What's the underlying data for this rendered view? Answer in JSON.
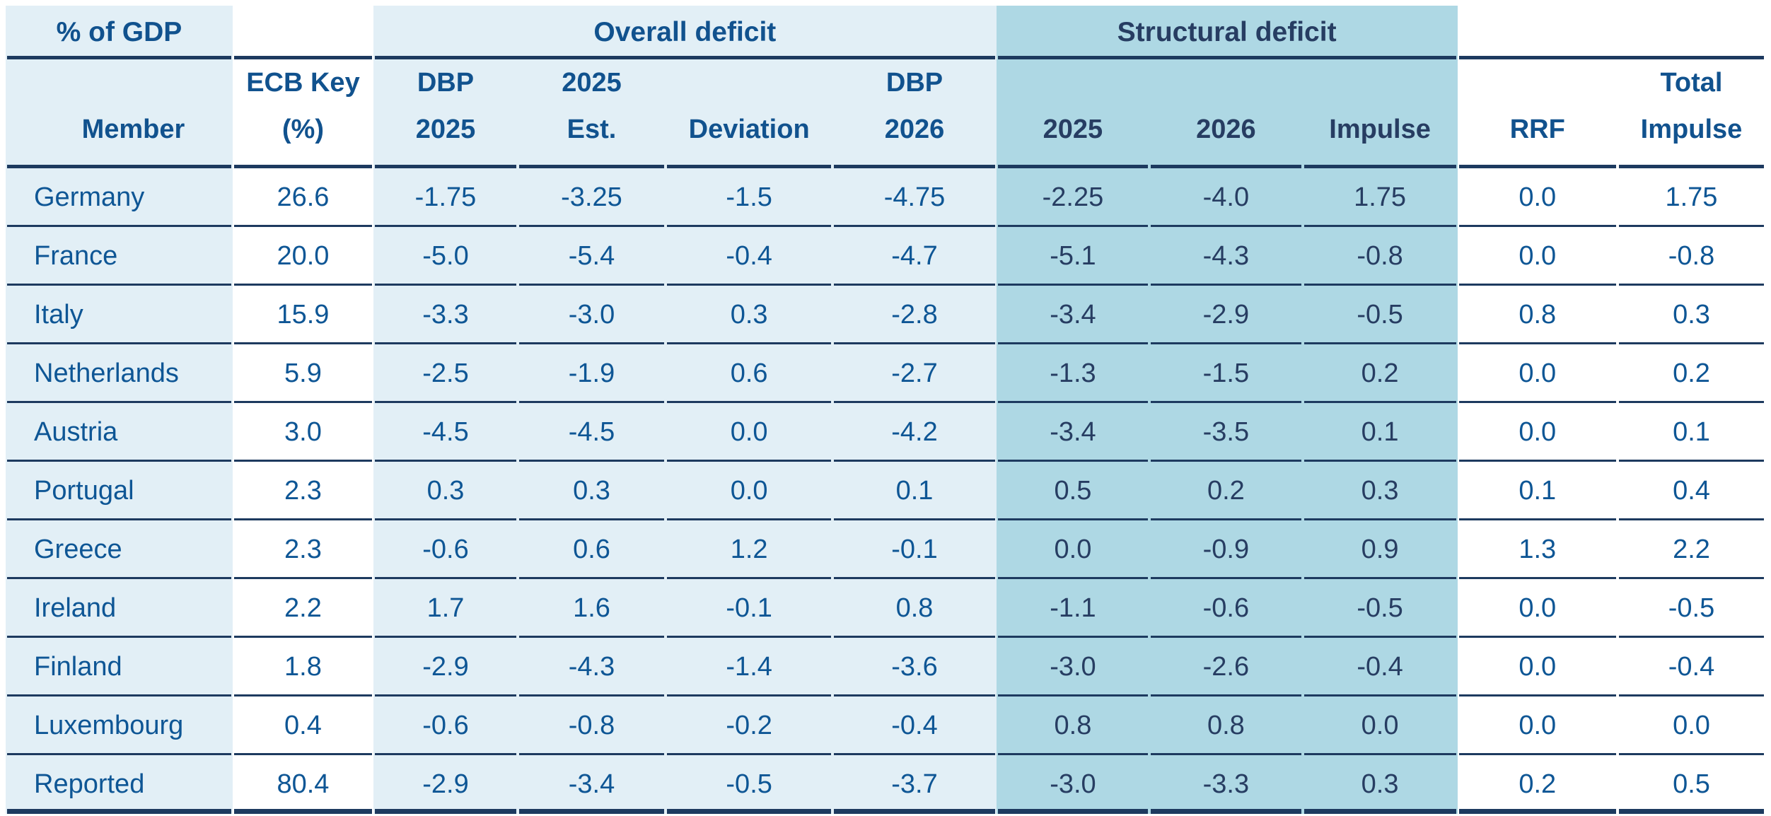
{
  "chart_data": {
    "type": "table",
    "corner_label": "% of GDP",
    "groups": {
      "overall": "Overall deficit",
      "structural": "Structural deficit"
    },
    "columns": [
      {
        "id": "member",
        "top": "",
        "bottom": "Member"
      },
      {
        "id": "ecb_key",
        "top": "ECB Key",
        "bottom": "(%)"
      },
      {
        "id": "dbp_2025",
        "top": "DBP",
        "bottom": "2025"
      },
      {
        "id": "est_2025",
        "top": "2025",
        "bottom": "Est."
      },
      {
        "id": "deviation",
        "top": "",
        "bottom": "Deviation"
      },
      {
        "id": "dbp_2026",
        "top": "DBP",
        "bottom": "2026"
      },
      {
        "id": "struct_2025",
        "top": "",
        "bottom": "2025"
      },
      {
        "id": "struct_2026",
        "top": "",
        "bottom": "2026"
      },
      {
        "id": "impulse",
        "top": "",
        "bottom": "Impulse"
      },
      {
        "id": "rrf",
        "top": "",
        "bottom": "RRF"
      },
      {
        "id": "total_impulse",
        "top": "Total",
        "bottom": "Impulse"
      }
    ],
    "rows": [
      {
        "cells": [
          "Germany",
          "26.6",
          "-1.75",
          "-3.25",
          "-1.5",
          "-4.75",
          "-2.25",
          "-4.0",
          "1.75",
          "0.0",
          "1.75"
        ]
      },
      {
        "cells": [
          "France",
          "20.0",
          "-5.0",
          "-5.4",
          "-0.4",
          "-4.7",
          "-5.1",
          "-4.3",
          "-0.8",
          "0.0",
          "-0.8"
        ]
      },
      {
        "cells": [
          "Italy",
          "15.9",
          "-3.3",
          "-3.0",
          "0.3",
          "-2.8",
          "-3.4",
          "-2.9",
          "-0.5",
          "0.8",
          "0.3"
        ]
      },
      {
        "cells": [
          "Netherlands",
          "5.9",
          "-2.5",
          "-1.9",
          "0.6",
          "-2.7",
          "-1.3",
          "-1.5",
          "0.2",
          "0.0",
          "0.2"
        ]
      },
      {
        "cells": [
          "Austria",
          "3.0",
          "-4.5",
          "-4.5",
          "0.0",
          "-4.2",
          "-3.4",
          "-3.5",
          "0.1",
          "0.0",
          "0.1"
        ]
      },
      {
        "cells": [
          "Portugal",
          "2.3",
          "0.3",
          "0.3",
          "0.0",
          "0.1",
          "0.5",
          "0.2",
          "0.3",
          "0.1",
          "0.4"
        ]
      },
      {
        "cells": [
          "Greece",
          "2.3",
          "-0.6",
          "0.6",
          "1.2",
          "-0.1",
          "0.0",
          "-0.9",
          "0.9",
          "1.3",
          "2.2"
        ]
      },
      {
        "cells": [
          "Ireland",
          "2.2",
          "1.7",
          "1.6",
          "-0.1",
          "0.8",
          "-1.1",
          "-0.6",
          "-0.5",
          "0.0",
          "-0.5"
        ]
      },
      {
        "cells": [
          "Finland",
          "1.8",
          "-2.9",
          "-4.3",
          "-1.4",
          "-3.6",
          "-3.0",
          "-2.6",
          "-0.4",
          "0.0",
          "-0.4"
        ]
      },
      {
        "cells": [
          "Luxembourg",
          "0.4",
          "-0.6",
          "-0.8",
          "-0.2",
          "-0.4",
          "0.8",
          "0.8",
          "0.0",
          "0.0",
          "0.0"
        ]
      },
      {
        "cells": [
          "Reported",
          "80.4",
          "-2.9",
          "-3.4",
          "-0.5",
          "-3.7",
          "-3.0",
          "-3.3",
          "0.3",
          "0.2",
          "0.5"
        ]
      }
    ],
    "colors": {
      "light_blue_bg": "#e2eff6",
      "medium_blue_bg": "#aed8e4",
      "blue_text": "#0e5695",
      "blue_header_text": "#11528e",
      "navy_text": "#273d62",
      "border_navy": "#1d3a5f"
    }
  }
}
